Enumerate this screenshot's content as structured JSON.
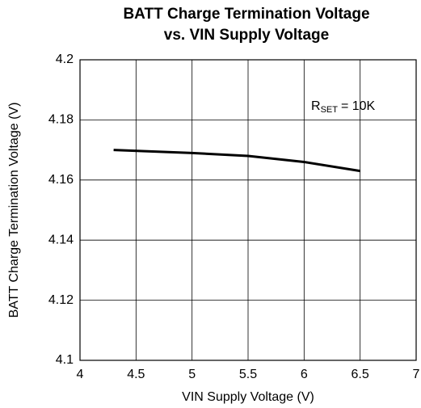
{
  "chart_data": {
    "type": "line",
    "title": [
      "BATT Charge Termination Voltage",
      "vs. VIN Supply Voltage"
    ],
    "x_label": "VIN Supply Voltage (V)",
    "y_label": "BATT Charge Termination Voltage (V)",
    "annotation": [
      "R",
      "SET",
      "= 10K"
    ],
    "x": [
      4.3,
      5,
      5.5,
      6,
      6.5
    ],
    "series": [
      {
        "name": null,
        "color": "#000000",
        "values": [
          4.17,
          4.169,
          4.168,
          4.166,
          4.163
        ]
      }
    ],
    "xlim": [
      4,
      7
    ],
    "xticks": [
      4,
      4.5,
      5,
      5.5,
      6,
      6.5,
      7
    ],
    "ylim": [
      4.1,
      4.2
    ],
    "yticks": [
      4.1,
      4.12,
      4.14,
      4.16,
      4.18,
      4.2
    ],
    "grid": true
  }
}
